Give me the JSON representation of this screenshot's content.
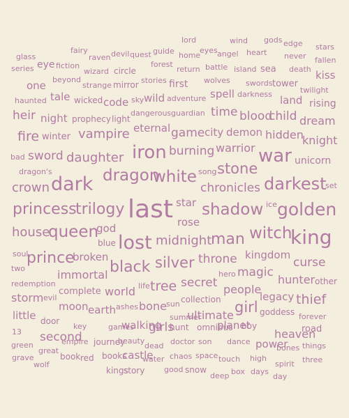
{
  "word_cloud": {
    "colors": {
      "background": "#f3eedd",
      "text": "#b27ba3"
    },
    "words": [
      "lord",
      "wind",
      "gods",
      "edge",
      "stars",
      "fairy",
      "eyes",
      "heart",
      "never",
      "glass",
      "raven",
      "devil",
      "quest",
      "guide",
      "home",
      "angel",
      "fallen",
      "series",
      "eye",
      "fiction",
      "wizard",
      "circle",
      "forest",
      "return",
      "battle",
      "island",
      "sea",
      "death",
      "kiss",
      "beyond",
      "wolves",
      "one",
      "strange",
      "mirror",
      "stories",
      "first",
      "swords",
      "tower",
      "twilight",
      "haunted",
      "tale",
      "wicked",
      "code",
      "sky",
      "wild",
      "adventure",
      "spell",
      "darkness",
      "land",
      "rising",
      "heir",
      "night",
      "prophecy",
      "light",
      "dangerous",
      "guardian",
      "time",
      "blood",
      "child",
      "dream",
      "fire",
      "winter",
      "vampire",
      "eternal",
      "game",
      "city",
      "demon",
      "hidden",
      "knight",
      "bad",
      "sword",
      "daughter",
      "iron",
      "burning",
      "warrior",
      "war",
      "unicorn",
      "dragon's",
      "dragon",
      "white",
      "song",
      "stone",
      "dark",
      "crown",
      "darkest",
      "set",
      "chronicles",
      "star",
      "ice",
      "princess",
      "trilogy",
      "last",
      "shadow",
      "golden",
      "rose",
      "house",
      "queen",
      "god",
      "witch",
      "king",
      "lost",
      "midnight",
      "man",
      "blue",
      "soul",
      "prince",
      "broken",
      "black",
      "silver",
      "throne",
      "kingdom",
      "curse",
      "two",
      "immortal",
      "magic",
      "redemption",
      "hero",
      "hunter",
      "other",
      "secret",
      "complete",
      "world",
      "life",
      "tree",
      "people",
      "storm",
      "evil",
      "legacy",
      "thief",
      "moon",
      "earth",
      "ashes",
      "bone",
      "sun",
      "collection",
      "girl",
      "little",
      "goddess",
      "summer",
      "ultimate",
      "door",
      "forever",
      "walking",
      "13",
      "key",
      "games",
      "girls",
      "hunt",
      "omnibus",
      "planet",
      "boy",
      "road",
      "second",
      "heaven",
      "green",
      "empire",
      "journey",
      "beauty",
      "doctor",
      "son",
      "dance",
      "power",
      "bones",
      "things",
      "great",
      "dead",
      "grave",
      "book",
      "red",
      "books",
      "castle",
      "water",
      "chaos",
      "space",
      "touch",
      "high",
      "three",
      "wolf",
      "spirit",
      "kings",
      "story",
      "good",
      "snow",
      "deep",
      "box",
      "days",
      "day"
    ]
  }
}
